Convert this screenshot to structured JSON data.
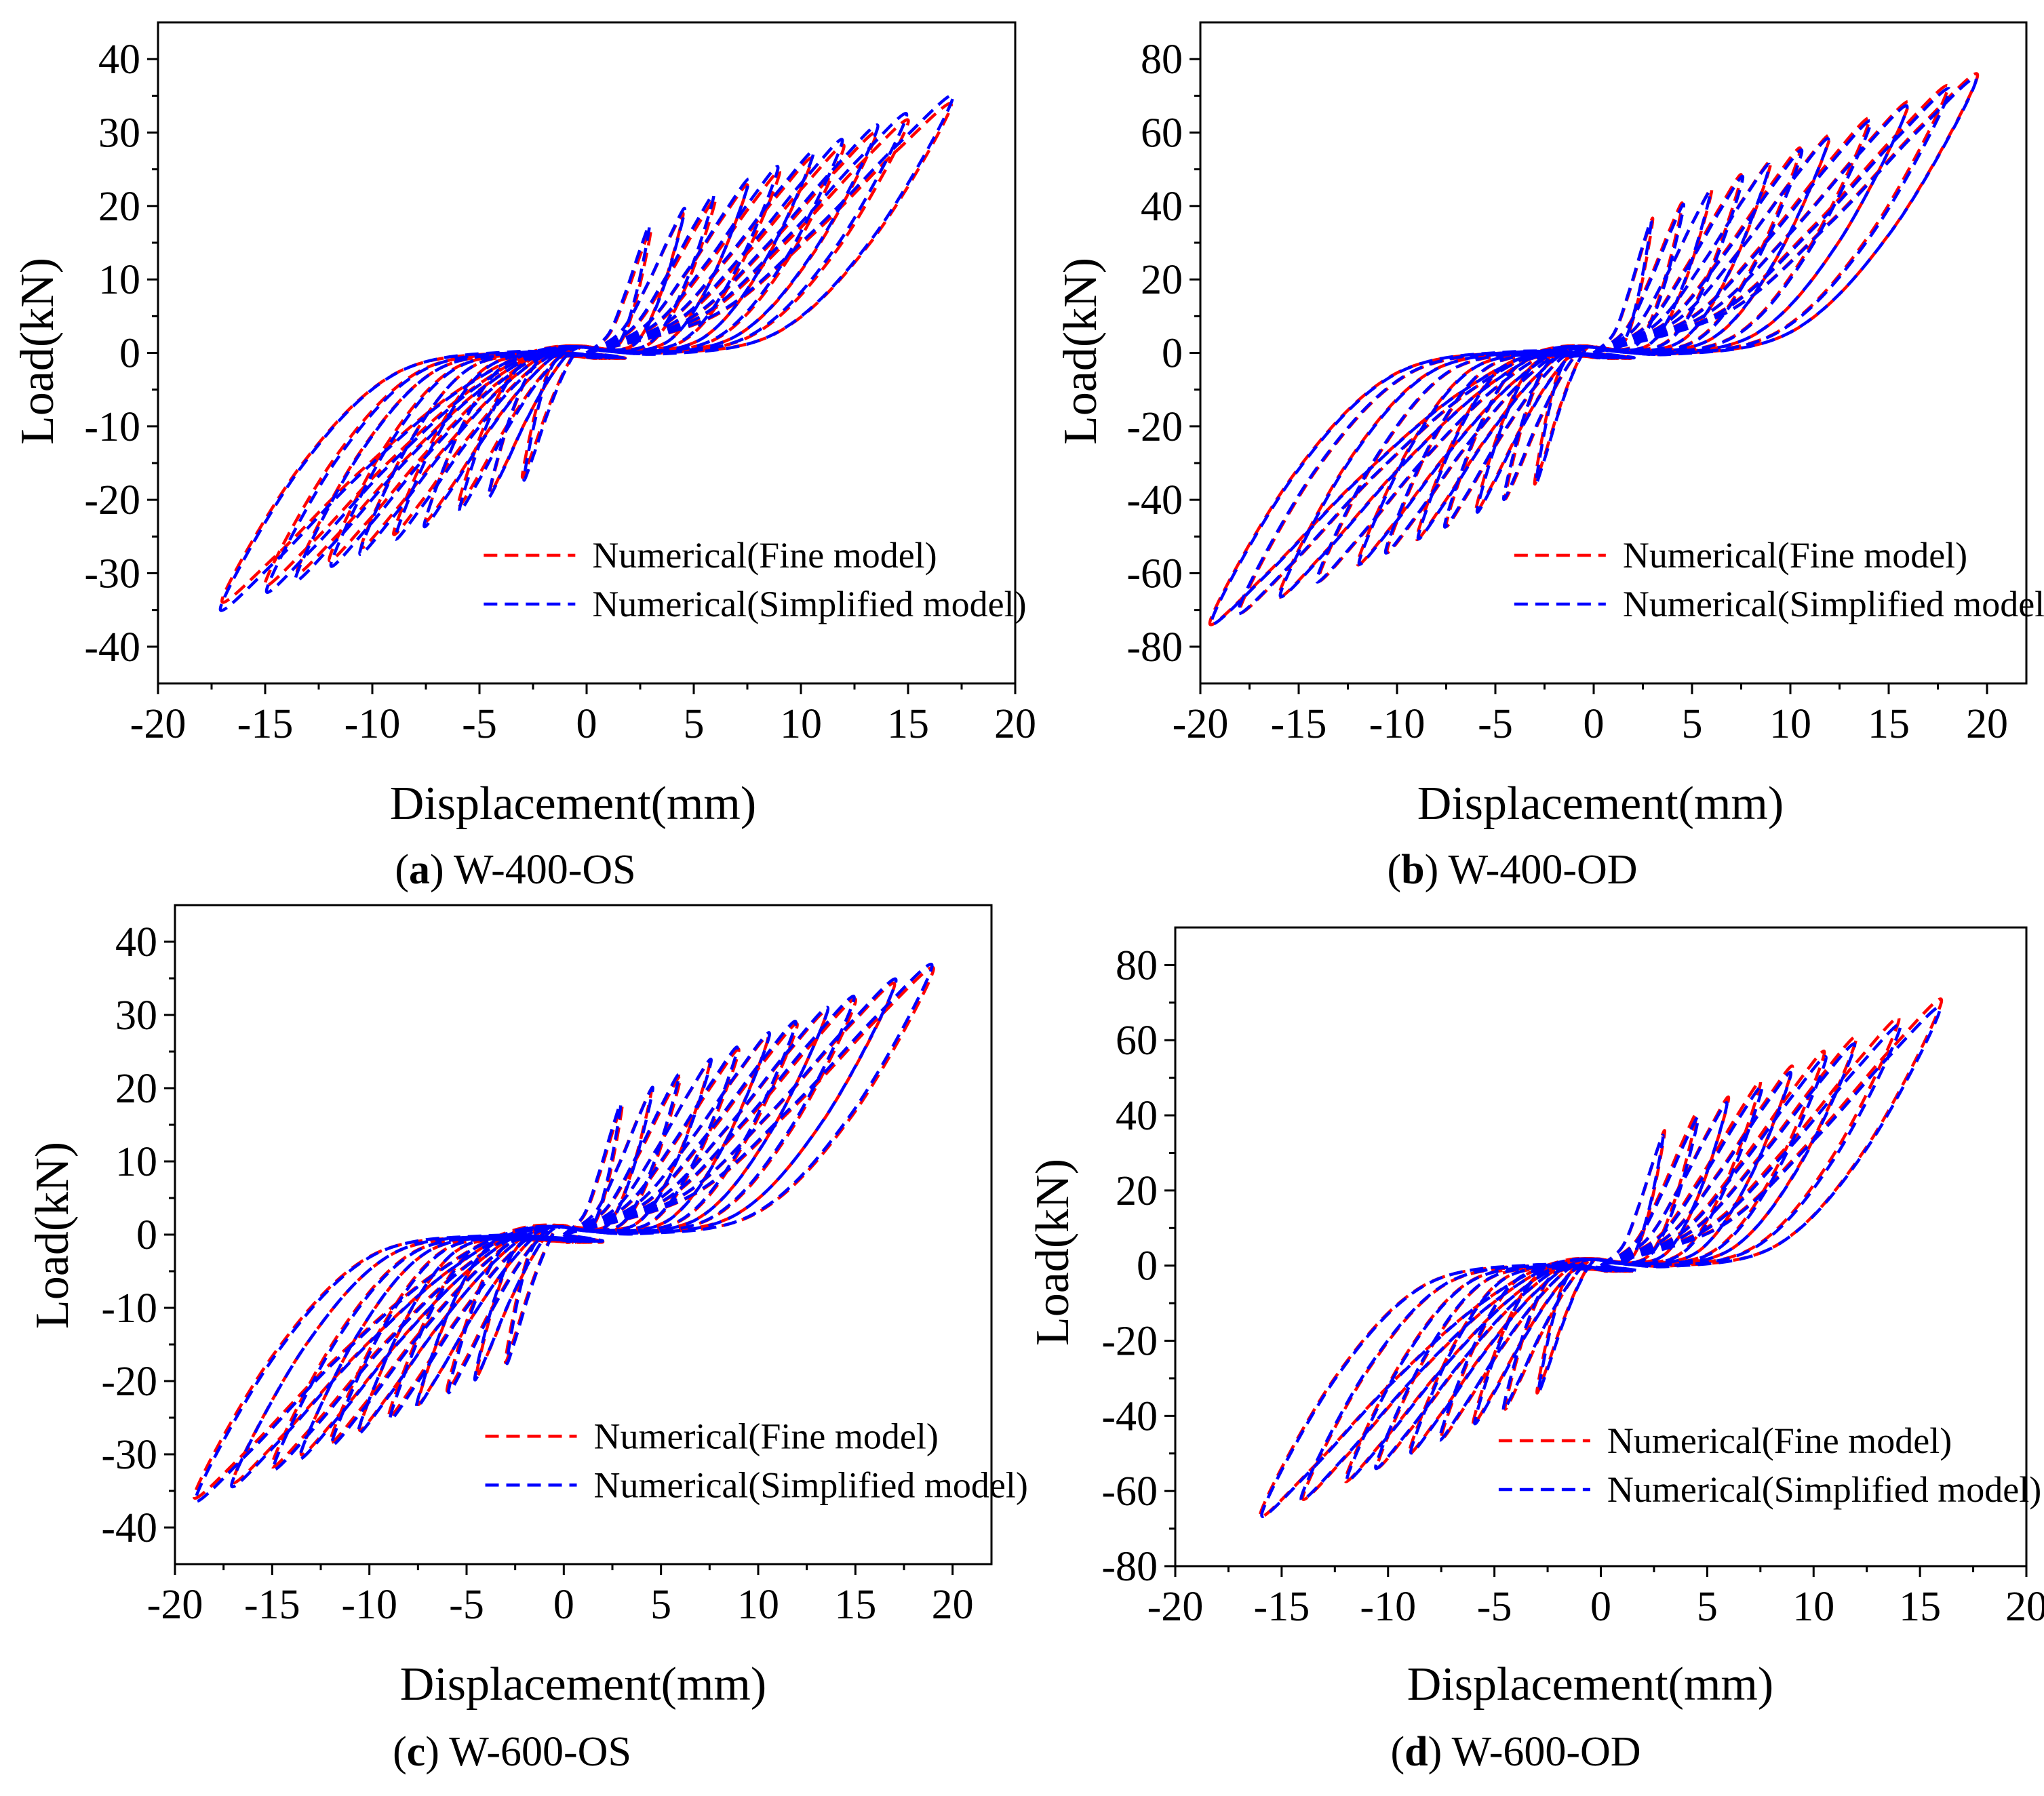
{
  "figure": {
    "background": "#ffffff",
    "fine_color": "#ff0000",
    "simplified_color": "#0000ff"
  },
  "chart_data": [
    {
      "id": "a",
      "type": "line",
      "caption": {
        "letter": "a",
        "label": "W-400-OS"
      },
      "xlabel": "Displacement(mm)",
      "ylabel": "Load(kN)",
      "xlim": [
        -20,
        20
      ],
      "ylim": [
        -45,
        45
      ],
      "xticks": [
        -20,
        -15,
        -10,
        -5,
        0,
        5,
        10,
        15,
        20
      ],
      "xtick_labels": [
        "-20",
        "-15",
        "-10",
        "-5",
        "0",
        "5",
        "10",
        "15",
        "20"
      ],
      "yticks": [
        -40,
        -30,
        -20,
        -10,
        0,
        10,
        20,
        30,
        40
      ],
      "ytick_labels": [
        "-40",
        "-30",
        "-20",
        "-10",
        "0",
        "10",
        "20",
        "30",
        "40"
      ],
      "amplitudes": [
        3,
        4.5,
        6,
        7.5,
        9,
        10.5,
        12,
        13.5,
        15,
        17
      ],
      "legend": {
        "position": "lower-right",
        "entries": [
          "Numerical(Fine model)",
          "Numerical(Simplified model)"
        ]
      },
      "series": [
        {
          "name": "Numerical(Fine model)",
          "color": "#ff0000",
          "peak_positive": 33.5,
          "peak_negative": -33.5,
          "unload_offset": 2.5
        },
        {
          "name": "Numerical(Simplified model)",
          "color": "#0000ff",
          "peak_positive": 34.5,
          "peak_negative": -34.5,
          "unload_offset": 2.2
        }
      ]
    },
    {
      "id": "b",
      "type": "line",
      "caption": {
        "letter": "b",
        "label": "W-400-OD"
      },
      "xlabel": "Displacement(mm)",
      "ylabel": "Load(kN)",
      "xlim": [
        -20,
        22
      ],
      "ylim": [
        -90,
        90
      ],
      "xticks": [
        -20,
        -15,
        -10,
        -5,
        0,
        5,
        10,
        15,
        20
      ],
      "xtick_labels": [
        "-20",
        "-15",
        "-10",
        "-5",
        "0",
        "5",
        "10",
        "15",
        "20"
      ],
      "yticks": [
        -80,
        -60,
        -40,
        -20,
        0,
        20,
        40,
        60,
        80
      ],
      "ytick_labels": [
        "-80",
        "-60",
        "-40",
        "-20",
        "0",
        "20",
        "40",
        "60",
        "80"
      ],
      "amplitudes": [
        3,
        4.5,
        6,
        7.5,
        9,
        10.5,
        12,
        14,
        16,
        18,
        19.5
      ],
      "legend": {
        "position": "lower-right",
        "entries": [
          "Numerical(Fine model)",
          "Numerical(Simplified model)"
        ]
      },
      "series": [
        {
          "name": "Numerical(Fine model)",
          "color": "#ff0000",
          "peak_positive": 75,
          "peak_negative": -73,
          "unload_offset": 5
        },
        {
          "name": "Numerical(Simplified model)",
          "color": "#0000ff",
          "peak_positive": 74,
          "peak_negative": -73,
          "unload_offset": 4.5
        }
      ]
    },
    {
      "id": "c",
      "type": "line",
      "caption": {
        "letter": "c",
        "label": "W-600-OS"
      },
      "xlabel": "Displacement(mm)",
      "ylabel": "Load(kN)",
      "xlim": [
        -20,
        22
      ],
      "ylim": [
        -45,
        45
      ],
      "xticks": [
        -20,
        -15,
        -10,
        -5,
        0,
        5,
        10,
        15,
        20
      ],
      "xtick_labels": [
        "-20",
        "-15",
        "-10",
        "-5",
        "0",
        "5",
        "10",
        "15",
        "20"
      ],
      "yticks": [
        -40,
        -30,
        -20,
        -10,
        0,
        10,
        20,
        30,
        40
      ],
      "ytick_labels": [
        "-40",
        "-30",
        "-20",
        "-10",
        "0",
        "10",
        "20",
        "30",
        "40"
      ],
      "amplitudes": [
        3,
        4.5,
        6,
        7.5,
        9,
        10.5,
        12,
        13.5,
        15,
        17,
        19
      ],
      "legend": {
        "position": "lower-right",
        "entries": [
          "Numerical(Fine model)",
          "Numerical(Simplified model)"
        ]
      },
      "series": [
        {
          "name": "Numerical(Fine model)",
          "color": "#ff0000",
          "peak_positive": 36,
          "peak_negative": -35.5,
          "unload_offset": 3.5
        },
        {
          "name": "Numerical(Simplified model)",
          "color": "#0000ff",
          "peak_positive": 36.5,
          "peak_negative": -36,
          "unload_offset": 3
        }
      ]
    },
    {
      "id": "d",
      "type": "line",
      "caption": {
        "letter": "d",
        "label": "W-600-OD"
      },
      "xlabel": "Displacement(mm)",
      "ylabel": "Load(kN)",
      "xlim": [
        -20,
        20
      ],
      "ylim": [
        -80,
        90
      ],
      "xticks": [
        -20,
        -15,
        -10,
        -5,
        0,
        5,
        10,
        15,
        20
      ],
      "xtick_labels": [
        "-20",
        "-15",
        "-10",
        "-5",
        "0",
        "5",
        "10",
        "15",
        "20"
      ],
      "yticks": [
        -80,
        -60,
        -40,
        -20,
        0,
        20,
        40,
        60,
        80
      ],
      "ytick_labels": [
        "-80",
        "-60",
        "-40",
        "-20",
        "0",
        "20",
        "40",
        "60",
        "80"
      ],
      "amplitudes": [
        3,
        4.5,
        6,
        7.5,
        9,
        10.5,
        12,
        14,
        16
      ],
      "legend": {
        "position": "lower-right",
        "entries": [
          "Numerical(Fine model)",
          "Numerical(Simplified model)"
        ]
      },
      "series": [
        {
          "name": "Numerical(Fine model)",
          "color": "#ff0000",
          "peak_positive": 70,
          "peak_negative": -66,
          "unload_offset": 5
        },
        {
          "name": "Numerical(Simplified model)",
          "color": "#0000ff",
          "peak_positive": 68,
          "peak_negative": -66,
          "unload_offset": 4.5
        }
      ]
    }
  ]
}
